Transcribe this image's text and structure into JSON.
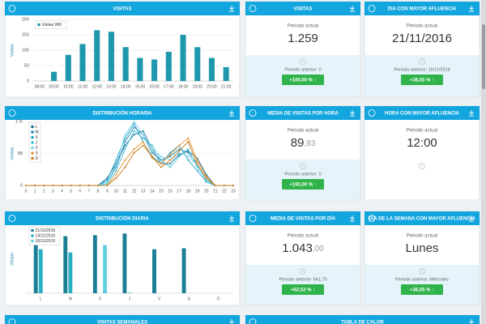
{
  "chart_data": [
    {
      "type": "bar",
      "title": "VISITAS",
      "y_label": "Visitas",
      "legend": "top-left",
      "grid": true,
      "categories": [
        "08:00",
        "09:00",
        "10:00",
        "11:00",
        "12:00",
        "13:00",
        "14:00",
        "15:00",
        "16:00",
        "17:00",
        "18:00",
        "19:00",
        "20:00",
        "21:00"
      ],
      "series": [
        {
          "name": "Visitas Wifi",
          "color": "#1f98ae",
          "values": [
            0,
            30,
            85,
            120,
            165,
            160,
            110,
            75,
            70,
            95,
            150,
            110,
            75,
            45
          ]
        }
      ],
      "ylim": [
        0,
        200
      ],
      "yticks": [
        0,
        50,
        100,
        150,
        200
      ]
    },
    {
      "type": "line",
      "title": "DISTRIBUCIÓN HORARIA",
      "y_label": "Visitas",
      "legend": "top-left",
      "grid": true,
      "x": [
        0,
        1,
        2,
        3,
        4,
        5,
        6,
        7,
        8,
        9,
        10,
        11,
        12,
        13,
        14,
        15,
        16,
        17,
        18,
        19,
        20,
        21,
        22,
        23
      ],
      "xlim": [
        0,
        23
      ],
      "xticks": [
        0,
        1,
        2,
        3,
        4,
        5,
        6,
        7,
        8,
        9,
        10,
        11,
        12,
        13,
        14,
        15,
        16,
        17,
        18,
        19,
        20,
        21,
        22,
        23
      ],
      "series": [
        {
          "name": "L",
          "color": "#1a6e8e",
          "values": [
            0,
            0,
            0,
            0,
            0,
            0,
            0,
            0,
            0,
            20,
            60,
            110,
            140,
            150,
            100,
            60,
            60,
            85,
            95,
            75,
            30,
            0,
            0,
            0
          ]
        },
        {
          "name": "M",
          "color": "#2486b3",
          "values": [
            0,
            0,
            0,
            0,
            0,
            0,
            0,
            0,
            0,
            10,
            50,
            120,
            160,
            140,
            90,
            70,
            80,
            100,
            90,
            60,
            20,
            0,
            0,
            0
          ]
        },
        {
          "name": "X",
          "color": "#23a0c9",
          "values": [
            0,
            0,
            0,
            0,
            0,
            0,
            0,
            0,
            0,
            15,
            70,
            130,
            170,
            120,
            80,
            60,
            90,
            110,
            70,
            40,
            10,
            0,
            0,
            0
          ]
        },
        {
          "name": "J",
          "color": "#3fc1d9",
          "values": [
            0,
            0,
            0,
            0,
            0,
            0,
            0,
            0,
            0,
            5,
            40,
            100,
            150,
            130,
            110,
            70,
            50,
            80,
            100,
            50,
            15,
            0,
            0,
            0
          ]
        },
        {
          "name": "V",
          "color": "#7bd6e8",
          "values": [
            0,
            0,
            0,
            0,
            0,
            0,
            0,
            0,
            0,
            10,
            55,
            140,
            176,
            140,
            100,
            80,
            70,
            90,
            80,
            55,
            20,
            0,
            0,
            0
          ]
        },
        {
          "name": "S",
          "color": "#e8952c",
          "values": [
            0,
            0,
            0,
            0,
            0,
            0,
            0,
            0,
            0,
            0,
            30,
            70,
            100,
            120,
            75,
            60,
            85,
            110,
            130,
            70,
            25,
            0,
            0,
            0
          ]
        },
        {
          "name": "D",
          "color": "#c97a1c",
          "values": [
            0,
            0,
            0,
            0,
            0,
            0,
            0,
            0,
            0,
            0,
            20,
            50,
            90,
            110,
            80,
            50,
            70,
            95,
            120,
            60,
            20,
            0,
            0,
            0
          ]
        }
      ],
      "ylim": [
        0,
        176
      ],
      "yticks": [
        0,
        88,
        176
      ]
    },
    {
      "type": "bar",
      "title": "DISTRIBUCIÓN DIARIA",
      "y_label": "Visitas",
      "legend": "top-left",
      "grid": false,
      "categories": [
        "L",
        "M",
        "X",
        "J",
        "V",
        "S",
        "D"
      ],
      "series": [
        {
          "name": "21/11/2016",
          "color": "#1a7f95",
          "values": [
            1060,
            1090,
            1110,
            1140,
            840,
            860,
            0
          ]
        },
        {
          "name": "14/11/2016",
          "color": "#2aaec4",
          "values": [
            840,
            780,
            0,
            10,
            0,
            0,
            0
          ]
        },
        {
          "name": "16/11/2015",
          "color": "#5fd0e0",
          "values": [
            0,
            0,
            920,
            0,
            0,
            0,
            0
          ]
        }
      ],
      "ylim": [
        0,
        1300
      ]
    }
  ],
  "cards": [
    {
      "title": "VISITAS",
      "current_label": "Periodo actual",
      "value": "1.259",
      "previous": "Periodo anterior: 0",
      "change": "+100,00 % ↑"
    },
    {
      "title": "DIA CON MAYOR AFLUENCIA",
      "current_label": "Periodo actual",
      "value": "21/11/2016",
      "previous": "Periodo anterior: 16/11/2016",
      "change": "+38,05 % ↑"
    },
    {
      "title": "MEDIA DE VISITAS POR HORA",
      "current_label": "Periodo actual",
      "value_main": "89",
      "value_decimals": ",93",
      "previous": "Periodo anterior: 0",
      "change": "+100,00 % ↑"
    },
    {
      "title": "HORA CON MAYOR AFLUENCIA",
      "current_label": "Periodo actual",
      "value": "12:00"
    },
    {
      "title": "MEDIA DE VISITAS POR DÍA",
      "current_label": "Periodo actual",
      "value_main": "1.043",
      "value_decimals": ",00",
      "previous": "Periodo anterior: 641,75",
      "change": "+62,52 % ↑"
    },
    {
      "title": "DÍA DE LA SEMANA CON MAYOR AFLUENCIA",
      "current_label": "Periodo actual",
      "value": "Lunes",
      "previous": "Periodo anterior: Miércoles",
      "change": "+38,05 % ↑"
    }
  ],
  "bottom_panels": [
    "VISITAS SEMANALES",
    "TABLA DE CALOR"
  ]
}
